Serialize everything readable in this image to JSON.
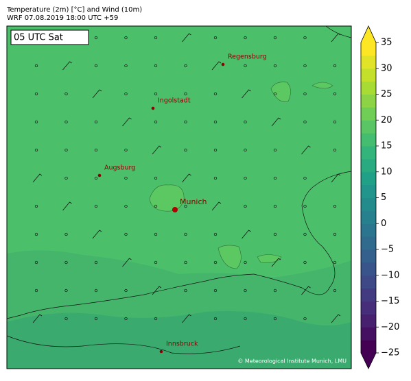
{
  "header": {
    "title": "Temperature (2m) [°C] and Wind (10m)",
    "subtitle": "WRF 07.08.2019 18:00 UTC +59"
  },
  "map": {
    "time_label": "05 UTC Sat",
    "copyright": "© Meteorological Institute Munich, LMU",
    "cities": [
      {
        "name": "Regensburg"
      },
      {
        "name": "Ingolstadt"
      },
      {
        "name": "Augsburg"
      },
      {
        "name": "Munich"
      },
      {
        "name": "Innsbruck"
      }
    ]
  },
  "colorbar": {
    "range": [
      -25,
      35
    ],
    "ticks": [
      {
        "value": -25,
        "label": "−25"
      },
      {
        "value": -20,
        "label": "−20"
      },
      {
        "value": -15,
        "label": "−15"
      },
      {
        "value": -10,
        "label": "−10"
      },
      {
        "value": -5,
        "label": "−5"
      },
      0,
      5,
      10,
      15,
      20,
      25,
      30,
      35
    ]
  }
}
